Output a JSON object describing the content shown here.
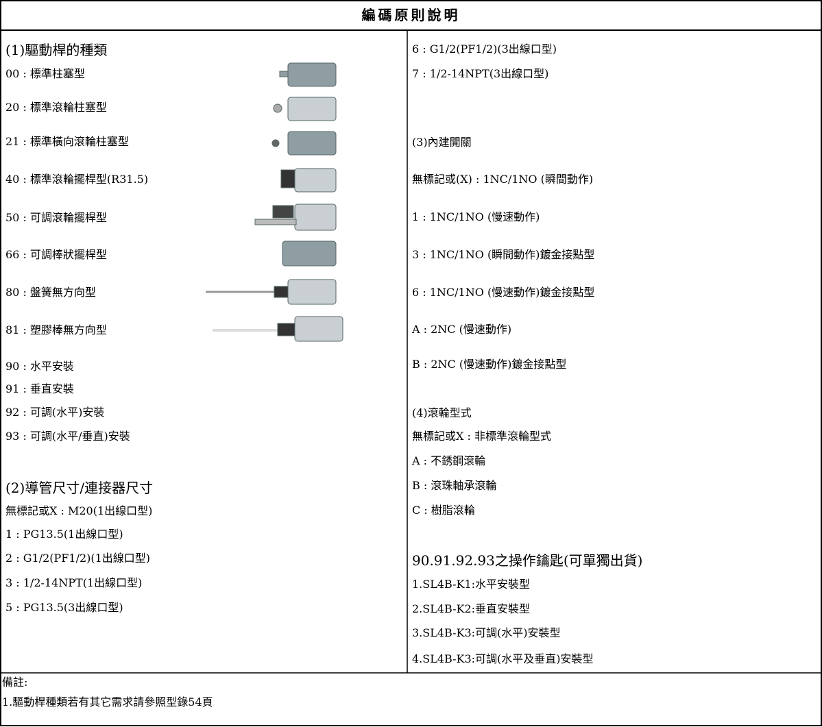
{
  "header": {
    "title": "編碼原則說明"
  },
  "left": {
    "lines": [
      "(1)驅動桿的種類",
      "00 : 標準柱塞型",
      "20 : 標準滾輪柱塞型",
      "21 : 標準橫向滾輪柱塞型",
      "40 : 標準滾輪擺桿型(R31.5)",
      "50 : 可調滾輪擺桿型",
      "66 : 可調棒狀擺桿型",
      "80 : 盤簧無方向型",
      "81 : 塑膠棒無方向型",
      "90 : 水平安裝",
      "91 : 垂直安裝",
      "92 : 可調(水平)安裝",
      "93 : 可調(水平/垂直)安裝",
      "(2)導管尺寸/連接器尺寸",
      "無標記或X : M20(1出線口型)",
      "1 : PG13.5(1出線口型)",
      "2 : G1/2(PF1/2)(1出線口型)",
      "3 : 1/2-14NPT(1出線口型)",
      "5 : PG13.5(3出線口型)"
    ]
  },
  "right": {
    "lines": [
      "6 : G1/2(PF1/2)(3出線口型)",
      "7 : 1/2-14NPT(3出線口型)",
      "(3)內建開關",
      "無標記或(X) : 1NC/1NO (瞬間動作)",
      "1 : 1NC/1NO (慢速動作)",
      "3 : 1NC/1NO (瞬間動作)鍍金接點型",
      "6 : 1NC/1NO (慢速動作)鍍金接點型",
      "A : 2NC (慢速動作)",
      "B : 2NC (慢速動作)鍍金接點型",
      "(4)滾輪型式",
      "無標記或X : 非標準滾輪型式",
      "A : 不銹鋼滾輪",
      "B : 滾珠軸承滾輪",
      "C : 樹脂滾輪",
      "90.91.92.93之操作鑰匙(可單獨出貨)",
      "1.SL4B-K1:水平安裝型",
      "2.SL4B-K2:垂直安裝型",
      "3.SL4B-K3:可調(水平)安裝型",
      "4.SL4B-K3:可調(水平及垂直)安裝型"
    ]
  },
  "notes": {
    "title": "備註:",
    "lines": [
      "1.驅動桿種類若有其它需求請參照型錄54頁"
    ]
  }
}
